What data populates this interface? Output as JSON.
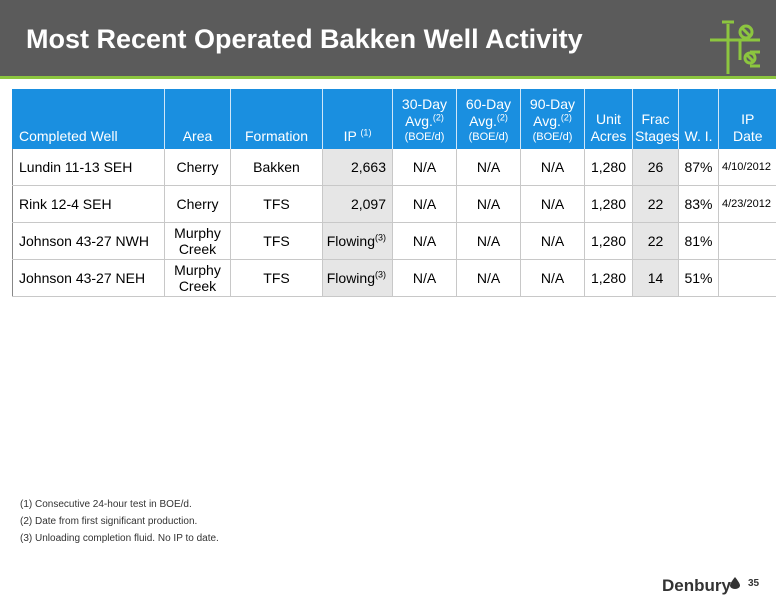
{
  "header": {
    "title": "Most Recent Operated Bakken Well Activity"
  },
  "table": {
    "columns": [
      {
        "lines": [
          "Completed Well"
        ],
        "sup": "",
        "unit": ""
      },
      {
        "lines": [
          "Area"
        ],
        "sup": "",
        "unit": ""
      },
      {
        "lines": [
          "Formation"
        ],
        "sup": "",
        "unit": ""
      },
      {
        "lines": [
          "IP"
        ],
        "sup": "(1)",
        "unit": ""
      },
      {
        "lines": [
          "30-Day",
          "Avg."
        ],
        "sup": "(2)",
        "unit": "(BOE/d)"
      },
      {
        "lines": [
          "60-Day",
          "Avg."
        ],
        "sup": "(2)",
        "unit": "(BOE/d)"
      },
      {
        "lines": [
          "90-Day",
          "Avg."
        ],
        "sup": "(2)",
        "unit": "(BOE/d)"
      },
      {
        "lines": [
          "Unit",
          "Acres"
        ],
        "sup": "",
        "unit": ""
      },
      {
        "lines": [
          "Frac",
          "Stages"
        ],
        "sup": "",
        "unit": ""
      },
      {
        "lines": [
          "W. I."
        ],
        "sup": "",
        "unit": ""
      },
      {
        "lines": [
          "IP",
          "Date"
        ],
        "sup": "",
        "unit": ""
      }
    ],
    "rows": [
      {
        "well": "Lundin 11-13 SEH",
        "area": "Cherry",
        "formation": "Bakken",
        "ip": "2,663",
        "ip_sup": "",
        "d30": "N/A",
        "d60": "N/A",
        "d90": "N/A",
        "acres": "1,280",
        "stages": "26",
        "wi": "87%",
        "date": "4/10/2012"
      },
      {
        "well": "Rink 12-4 SEH",
        "area": "Cherry",
        "formation": "TFS",
        "ip": "2,097",
        "ip_sup": "",
        "d30": "N/A",
        "d60": "N/A",
        "d90": "N/A",
        "acres": "1,280",
        "stages": "22",
        "wi": "83%",
        "date": "4/23/2012"
      },
      {
        "well": "Johnson 43-27 NWH",
        "area": "Murphy Creek",
        "formation": "TFS",
        "ip": "Flowing",
        "ip_sup": "(3)",
        "d30": "N/A",
        "d60": "N/A",
        "d90": "N/A",
        "acres": "1,280",
        "stages": "22",
        "wi": "81%",
        "date": ""
      },
      {
        "well": "Johnson 43-27 NEH",
        "area": "Murphy Creek",
        "formation": "TFS",
        "ip": "Flowing",
        "ip_sup": "(3)",
        "d30": "N/A",
        "d60": "N/A",
        "d90": "N/A",
        "acres": "1,280",
        "stages": "14",
        "wi": "51%",
        "date": ""
      }
    ]
  },
  "footnotes": [
    "(1) Consecutive 24-hour test in BOE/d.",
    "(2) Date from first significant production.",
    "(3) Unloading completion fluid. No IP to date."
  ],
  "footer": {
    "brand": "Denbury",
    "page_number": "35"
  },
  "icons": {
    "logo": "wellhead-valve-icon",
    "brand_mark": "oil-drop-icon"
  },
  "colors": {
    "header_bg": "#5b5b5b",
    "accent_green": "#8cc63f",
    "table_header_blue": "#1a8fe0",
    "shaded_cell": "#e6e6e6"
  }
}
